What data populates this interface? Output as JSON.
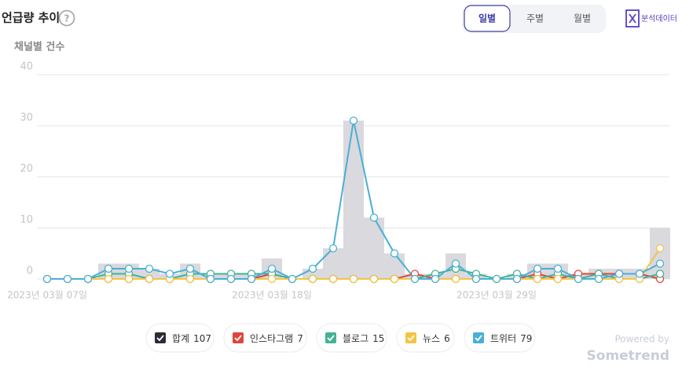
{
  "header": {
    "title": "언급량 추이",
    "help": "?",
    "tabs": [
      "일별",
      "주별",
      "월별"
    ],
    "export": "분석데이터"
  },
  "chart_data": {
    "type": "bar-line",
    "subtitle": "채널별 건수",
    "categories": [
      "2023년 03월 07일",
      null,
      null,
      null,
      null,
      null,
      null,
      null,
      null,
      null,
      null,
      "2023년 03월 18일",
      null,
      null,
      null,
      null,
      null,
      null,
      null,
      null,
      null,
      null,
      "2023년 03월 29일",
      null,
      null,
      null,
      null,
      null,
      null,
      null,
      null
    ],
    "series": [
      {
        "name": "합계",
        "count": 107,
        "kind": "bar",
        "color": "#2b2d36",
        "bar_color": "#d9d9de",
        "values": [
          0,
          0,
          0,
          3,
          3,
          2,
          1,
          3,
          1,
          1,
          1,
          4,
          0,
          2,
          6,
          31,
          12,
          5,
          1,
          1,
          5,
          1,
          0,
          1,
          3,
          3,
          1,
          2,
          2,
          2,
          10
        ]
      },
      {
        "name": "인스타그램",
        "count": 7,
        "kind": "line",
        "color": "#e0453a",
        "values": [
          0,
          0,
          0,
          0,
          0,
          0,
          0,
          0,
          0,
          0,
          0,
          1,
          0,
          0,
          0,
          0,
          0,
          0,
          1,
          0,
          0,
          0,
          0,
          0,
          1,
          0,
          1,
          1,
          1,
          1,
          0
        ]
      },
      {
        "name": "블로그",
        "count": 15,
        "kind": "line",
        "color": "#44b294",
        "values": [
          0,
          0,
          0,
          1,
          1,
          0,
          0,
          1,
          1,
          1,
          1,
          1,
          0,
          0,
          0,
          0,
          0,
          0,
          0,
          1,
          2,
          1,
          0,
          1,
          0,
          1,
          0,
          1,
          0,
          0,
          1
        ]
      },
      {
        "name": "뉴스",
        "count": 6,
        "kind": "line",
        "color": "#f5c342",
        "values": [
          0,
          0,
          0,
          0,
          0,
          0,
          0,
          0,
          0,
          0,
          0,
          0,
          0,
          0,
          0,
          0,
          0,
          0,
          0,
          0,
          0,
          0,
          0,
          0,
          0,
          0,
          0,
          0,
          0,
          0,
          6
        ]
      },
      {
        "name": "트위터",
        "count": 79,
        "kind": "line",
        "color": "#4aafd5",
        "values": [
          0,
          0,
          0,
          2,
          2,
          2,
          1,
          2,
          0,
          0,
          0,
          2,
          0,
          2,
          6,
          31,
          12,
          5,
          0,
          0,
          3,
          0,
          0,
          0,
          2,
          2,
          0,
          0,
          1,
          1,
          3
        ]
      }
    ],
    "ylim": [
      0,
      40
    ],
    "yticks": [
      0,
      10,
      20,
      30,
      40
    ],
    "grid": true
  },
  "footer": {
    "powered": "Powered by",
    "brand": "Sometrend"
  }
}
